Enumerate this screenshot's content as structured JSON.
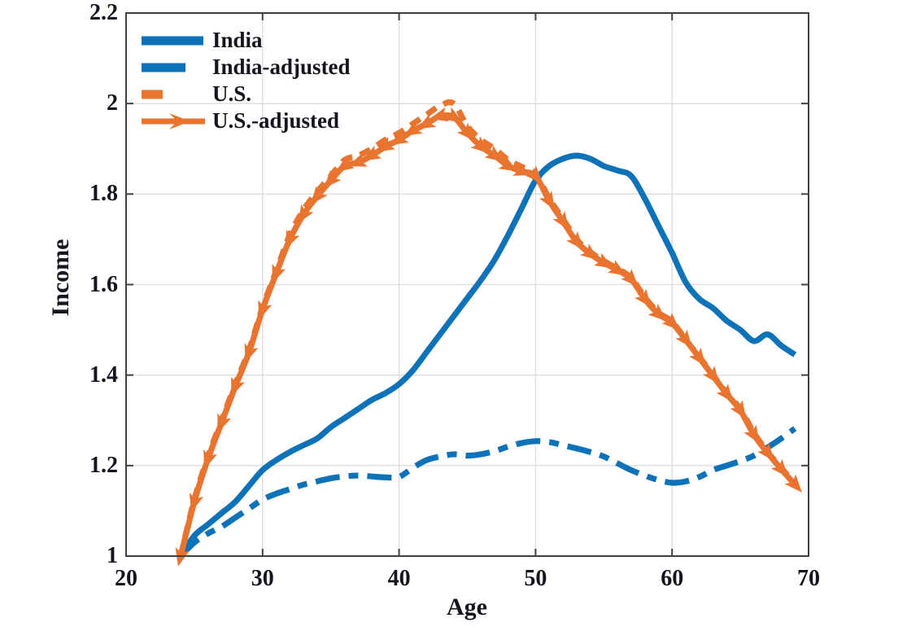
{
  "chart_data": {
    "type": "line",
    "title": "",
    "xlabel": "Age",
    "ylabel": "Income",
    "xlim": [
      20,
      70
    ],
    "ylim": [
      1,
      2.2
    ],
    "x_ticks": [
      "20",
      "30",
      "40",
      "50",
      "60",
      "70"
    ],
    "x_tick_values": [
      20,
      30,
      40,
      50,
      60,
      70
    ],
    "y_ticks": [
      "1",
      "1.2",
      "1.4",
      "1.6",
      "1.8",
      "2",
      "2.2"
    ],
    "y_tick_values": [
      1,
      1.2,
      1.4,
      1.6,
      1.8,
      2,
      2.2
    ],
    "grid": true,
    "legend_position": "top-left",
    "colors": {
      "blue": "#0e72b8",
      "orange": "#e8742f",
      "grid": "#dcdcdc",
      "axis_box": "#404040",
      "text": "#15151f"
    },
    "x": [
      24,
      25,
      26,
      27,
      28,
      29,
      30,
      31,
      32,
      33,
      34,
      35,
      36,
      37,
      38,
      39,
      40,
      41,
      42,
      43,
      44,
      45,
      46,
      47,
      48,
      49,
      50,
      51,
      52,
      53,
      54,
      55,
      56,
      57,
      58,
      59,
      60,
      61,
      62,
      63,
      64,
      65,
      66,
      67,
      68,
      69
    ],
    "series": [
      {
        "name": "India",
        "color_key": "blue",
        "style": "solid",
        "marker": "none",
        "values": [
          1.0,
          1.045,
          1.07,
          1.095,
          1.12,
          1.155,
          1.19,
          1.212,
          1.23,
          1.245,
          1.26,
          1.285,
          1.305,
          1.325,
          1.345,
          1.36,
          1.38,
          1.41,
          1.45,
          1.49,
          1.53,
          1.57,
          1.61,
          1.655,
          1.71,
          1.77,
          1.83,
          1.862,
          1.878,
          1.885,
          1.878,
          1.862,
          1.852,
          1.84,
          1.79,
          1.73,
          1.67,
          1.605,
          1.568,
          1.548,
          1.52,
          1.5,
          1.475,
          1.49,
          1.465,
          1.445
        ]
      },
      {
        "name": "India-adjusted",
        "color_key": "blue",
        "style": "dashdot",
        "marker": "none",
        "values": [
          1.0,
          1.03,
          1.05,
          1.065,
          1.085,
          1.105,
          1.125,
          1.138,
          1.148,
          1.158,
          1.165,
          1.172,
          1.176,
          1.178,
          1.176,
          1.174,
          1.175,
          1.195,
          1.212,
          1.22,
          1.225,
          1.222,
          1.225,
          1.232,
          1.242,
          1.25,
          1.254,
          1.252,
          1.245,
          1.238,
          1.23,
          1.22,
          1.205,
          1.19,
          1.178,
          1.168,
          1.162,
          1.165,
          1.175,
          1.19,
          1.2,
          1.21,
          1.222,
          1.24,
          1.26,
          1.282
        ]
      },
      {
        "name": "U.S.",
        "color_key": "orange",
        "style": "dashed",
        "marker": "none",
        "values": [
          1.0,
          1.125,
          1.22,
          1.3,
          1.38,
          1.455,
          1.55,
          1.63,
          1.71,
          1.765,
          1.805,
          1.84,
          1.875,
          1.885,
          1.9,
          1.92,
          1.935,
          1.955,
          1.975,
          1.995,
          2.0,
          1.95,
          1.92,
          1.9,
          1.875,
          1.86,
          1.845,
          1.79,
          1.745,
          1.7,
          1.672,
          1.652,
          1.635,
          1.615,
          1.572,
          1.538,
          1.518,
          1.478,
          1.44,
          1.4,
          1.36,
          1.325,
          1.272,
          1.23,
          1.195,
          1.16
        ]
      },
      {
        "name": "U.S.-adjusted",
        "color_key": "orange",
        "style": "solid",
        "marker": "arrow",
        "values": [
          1.0,
          1.12,
          1.215,
          1.295,
          1.375,
          1.45,
          1.545,
          1.625,
          1.7,
          1.755,
          1.795,
          1.83,
          1.862,
          1.87,
          1.885,
          1.905,
          1.92,
          1.94,
          1.955,
          1.972,
          1.97,
          1.935,
          1.905,
          1.885,
          1.862,
          1.85,
          1.84,
          1.785,
          1.74,
          1.695,
          1.668,
          1.648,
          1.632,
          1.612,
          1.568,
          1.535,
          1.515,
          1.478,
          1.438,
          1.398,
          1.358,
          1.322,
          1.268,
          1.228,
          1.192,
          1.158
        ]
      }
    ]
  }
}
